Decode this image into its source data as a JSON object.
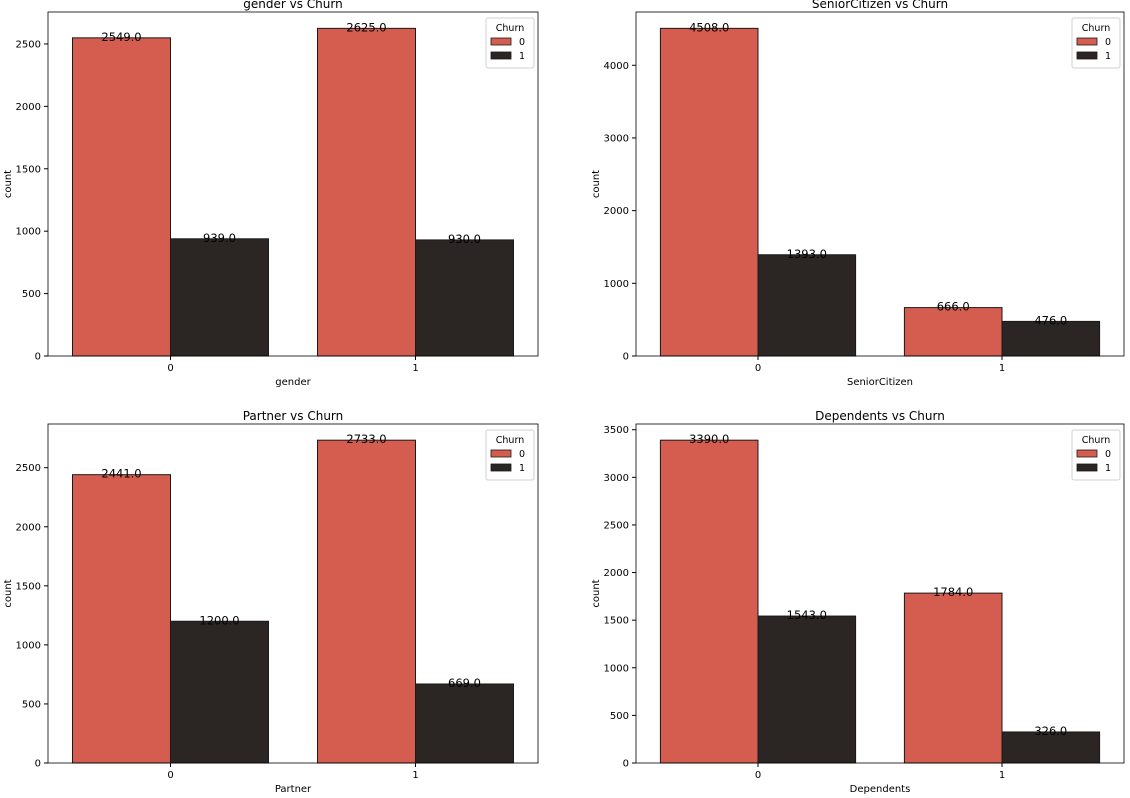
{
  "legend_title": "Churn",
  "colors": {
    "churn_0": "#d45d50",
    "churn_1": "#2b2624",
    "edge": "#1a1a1a"
  },
  "chart_data": [
    {
      "type": "bar",
      "title": "gender vs Churn",
      "xlabel": "gender",
      "ylabel": "count",
      "categories": [
        "0",
        "1"
      ],
      "series": [
        {
          "name": "0",
          "values": [
            2549,
            2625
          ],
          "labels": [
            "2549.0",
            "2625.0"
          ]
        },
        {
          "name": "1",
          "values": [
            939,
            930
          ],
          "labels": [
            "939.0",
            "930.0"
          ]
        }
      ],
      "ylim": [
        0,
        2756
      ],
      "yticks": [
        0,
        500,
        1000,
        1500,
        2000,
        2500
      ],
      "legend": "top-right",
      "grid": false
    },
    {
      "type": "bar",
      "title": "SeniorCitizen vs Churn",
      "xlabel": "SeniorCitizen",
      "ylabel": "count",
      "categories": [
        "0",
        "1"
      ],
      "series": [
        {
          "name": "0",
          "values": [
            4508,
            666
          ],
          "labels": [
            "4508.0",
            "666.0"
          ]
        },
        {
          "name": "1",
          "values": [
            1393,
            476
          ],
          "labels": [
            "1393.0",
            "476.0"
          ]
        }
      ],
      "ylim": [
        0,
        4733
      ],
      "yticks": [
        0,
        1000,
        2000,
        3000,
        4000
      ],
      "legend": "top-right",
      "grid": false
    },
    {
      "type": "bar",
      "title": "Partner vs Churn",
      "xlabel": "Partner",
      "ylabel": "count",
      "categories": [
        "0",
        "1"
      ],
      "series": [
        {
          "name": "0",
          "values": [
            2441,
            2733
          ],
          "labels": [
            "2441.0",
            "2733.0"
          ]
        },
        {
          "name": "1",
          "values": [
            1200,
            669
          ],
          "labels": [
            "1200.0",
            "669.0"
          ]
        }
      ],
      "ylim": [
        0,
        2870
      ],
      "yticks": [
        0,
        500,
        1000,
        1500,
        2000,
        2500
      ],
      "legend": "top-right",
      "grid": false
    },
    {
      "type": "bar",
      "title": "Dependents vs Churn",
      "xlabel": "Dependents",
      "ylabel": "count",
      "categories": [
        "0",
        "1"
      ],
      "series": [
        {
          "name": "0",
          "values": [
            3390,
            1784
          ],
          "labels": [
            "3390.0",
            "1784.0"
          ]
        },
        {
          "name": "1",
          "values": [
            1543,
            326
          ],
          "labels": [
            "1543.0",
            "326.0"
          ]
        }
      ],
      "ylim": [
        0,
        3560
      ],
      "yticks": [
        0,
        500,
        1000,
        1500,
        2000,
        2500,
        3000,
        3500
      ],
      "legend": "top-right",
      "grid": false
    }
  ]
}
